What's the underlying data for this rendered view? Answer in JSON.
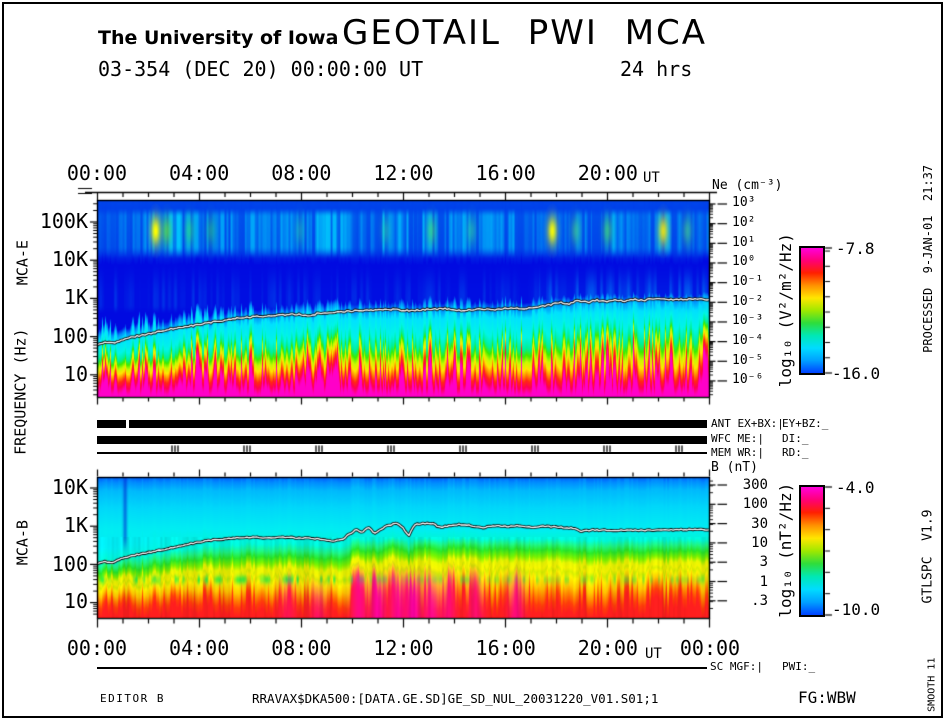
{
  "header": {
    "org": "The University of Iowa",
    "title": "GEOTAIL PWI MCA",
    "date_line": "03-354 (DEC 20) 00:00:00 UT",
    "duration": "24 hrs"
  },
  "top_axis": {
    "ticks": [
      "00:00",
      "04:00",
      "08:00",
      "12:00",
      "16:00",
      "20:00"
    ],
    "suffix": "UT"
  },
  "bottom_axis": {
    "ticks": [
      "00:00",
      "04:00",
      "08:00",
      "12:00",
      "16:00",
      "20:00"
    ],
    "suffix": "UT",
    "end_tick": "00:00"
  },
  "left_axis": {
    "label": "FREQUENCY (Hz)",
    "panel_e": "MCA-E",
    "panel_b": "MCA-B",
    "e_ticks": [
      "100K",
      "10K",
      "1K",
      "100",
      "10"
    ],
    "b_ticks": [
      "10K",
      "1K",
      "100",
      "10"
    ]
  },
  "right_axis_e": {
    "title": "Ne (cm⁻³)",
    "ticks": [
      "10³",
      "10²",
      "10¹",
      "10⁰",
      "10⁻¹",
      "10⁻²",
      "10⁻³",
      "10⁻⁴",
      "10⁻⁵",
      "10⁻⁶"
    ]
  },
  "right_axis_b": {
    "title": "B (nT)",
    "ticks": [
      "300",
      "100",
      "30",
      "10",
      "3",
      "1",
      ".3"
    ]
  },
  "colorbar_e": {
    "label": "log₁₀ (V²/m²/Hz)",
    "max_label": "-7.8",
    "min_label": "-16.0"
  },
  "colorbar_b": {
    "label": "log₁₀ (nT²/Hz)",
    "max_label": "-4.0",
    "min_label": "-10.0"
  },
  "colorbar_gradient": [
    "#ff00dd",
    "#ff0077",
    "#ff2000",
    "#ff9100",
    "#ffe600",
    "#9fe800",
    "#2edd3c",
    "#00e8b4",
    "#00dcff",
    "#00a0ff",
    "#0041ff"
  ],
  "status": {
    "row1_left": "ANT EX+BX:|",
    "row1_right": "EY+BZ:_",
    "row2_left": "WFC ME:|",
    "row2_right": "DI:_",
    "row3_left": "MEM WR:|",
    "row3_right": "RD:_",
    "sc_left": "SC MGF:|",
    "sc_right": "PWI:_"
  },
  "footer": {
    "editor": "EDITOR B",
    "file": "RRAVAX$DKA500:[DATA.GE.SD]GE_SD_NUL_20031220_V01.S01;1",
    "fg": "FG:WBW"
  },
  "side": {
    "processed": "PROCESSED  9-JAN-01  21:37",
    "program": "GTLSPC  V1.9",
    "smooth": "SMOOTH 11"
  },
  "chart_data": [
    {
      "id": "mca-e",
      "type": "heatmap",
      "instrument": "MCA-E",
      "x_label": "UT",
      "x_hours": [
        0,
        24
      ],
      "x_tick_labels": [
        "00:00",
        "04:00",
        "08:00",
        "12:00",
        "16:00",
        "20:00"
      ],
      "y_axis": {
        "label": "FREQUENCY (Hz)",
        "scale": "log",
        "tick_labels": [
          "100K",
          "10K",
          "1K",
          "100",
          "10"
        ]
      },
      "z_axis": {
        "label": "log10 (V²/m²/Hz)",
        "max": -7.8,
        "min": -16.0
      },
      "right_axis": {
        "label": "Ne (cm⁻³)",
        "tick_labels": [
          "10³",
          "10²",
          "10¹",
          "10⁰",
          "10⁻¹",
          "10⁻²",
          "10⁻³",
          "10⁻⁴",
          "10⁻⁵",
          "10⁻⁶"
        ]
      },
      "background_profile": [
        [
          0.0,
          "#0046eb"
        ],
        [
          0.28,
          "#0028e6"
        ],
        [
          0.33,
          "#000ae1"
        ],
        [
          0.52,
          "#000ae1"
        ],
        [
          0.555,
          "#008cfa"
        ],
        [
          0.6,
          "#00e1ff"
        ],
        [
          0.7,
          "#00f5e6"
        ],
        [
          0.76,
          "#00f096"
        ],
        [
          0.795,
          "#3ceb00"
        ],
        [
          0.83,
          "#c8fa00"
        ],
        [
          0.865,
          "#ffe600"
        ],
        [
          0.895,
          "#ff8c00"
        ],
        [
          0.925,
          "#ff2814"
        ],
        [
          0.955,
          "#ff0050"
        ],
        [
          0.985,
          "#ff00b4"
        ],
        [
          1.0,
          "#ff00c8"
        ]
      ],
      "emission_blobs": [
        [
          0.095,
          1.0,
          "#ffff00"
        ],
        [
          0.113,
          0.55,
          "#80ff00"
        ],
        [
          0.15,
          0.4,
          "#40ff40"
        ],
        [
          0.185,
          0.35,
          "#40ff40"
        ],
        [
          0.33,
          0.3,
          "#40ff80"
        ],
        [
          0.47,
          0.35,
          "#40ff80"
        ],
        [
          0.545,
          0.45,
          "#60ff40"
        ],
        [
          0.61,
          0.4,
          "#40ff80"
        ],
        [
          0.742,
          0.95,
          "#ffff00"
        ],
        [
          0.78,
          0.45,
          "#60ff60"
        ],
        [
          0.832,
          0.5,
          "#60ff40"
        ],
        [
          0.923,
          0.85,
          "#fff000"
        ],
        [
          0.962,
          0.45,
          "#60ff60"
        ]
      ],
      "overlay_line_points": [
        [
          0,
          0.735
        ],
        [
          0.015,
          0.72
        ],
        [
          0.03,
          0.725
        ],
        [
          0.05,
          0.7
        ],
        [
          0.07,
          0.688
        ],
        [
          0.09,
          0.675
        ],
        [
          0.11,
          0.66
        ],
        [
          0.14,
          0.645
        ],
        [
          0.17,
          0.63
        ],
        [
          0.2,
          0.615
        ],
        [
          0.23,
          0.6
        ],
        [
          0.26,
          0.592
        ],
        [
          0.3,
          0.585
        ],
        [
          0.33,
          0.578
        ],
        [
          0.345,
          0.592
        ],
        [
          0.36,
          0.575
        ],
        [
          0.39,
          0.568
        ],
        [
          0.42,
          0.562
        ],
        [
          0.45,
          0.558
        ],
        [
          0.48,
          0.555
        ],
        [
          0.51,
          0.562
        ],
        [
          0.54,
          0.555
        ],
        [
          0.57,
          0.552
        ],
        [
          0.6,
          0.562
        ],
        [
          0.62,
          0.552
        ],
        [
          0.645,
          0.558
        ],
        [
          0.67,
          0.548
        ],
        [
          0.7,
          0.552
        ],
        [
          0.72,
          0.545
        ],
        [
          0.74,
          0.532
        ],
        [
          0.755,
          0.52
        ],
        [
          0.77,
          0.527
        ],
        [
          0.785,
          0.51
        ],
        [
          0.8,
          0.52
        ],
        [
          0.815,
          0.507
        ],
        [
          0.83,
          0.518
        ],
        [
          0.845,
          0.505
        ],
        [
          0.86,
          0.512
        ],
        [
          0.875,
          0.503
        ],
        [
          0.89,
          0.51
        ],
        [
          0.905,
          0.502
        ],
        [
          0.93,
          0.506
        ],
        [
          0.96,
          0.504
        ],
        [
          1,
          0.504
        ]
      ]
    },
    {
      "id": "mca-b",
      "type": "heatmap",
      "instrument": "MCA-B",
      "x_label": "UT",
      "x_hours": [
        0,
        24
      ],
      "x_tick_labels": [
        "00:00",
        "04:00",
        "08:00",
        "12:00",
        "16:00",
        "20:00"
      ],
      "y_axis": {
        "label": "FREQUENCY (Hz)",
        "scale": "log",
        "tick_labels": [
          "10K",
          "1K",
          "100",
          "10"
        ]
      },
      "z_axis": {
        "label": "log10 (nT²/Hz)",
        "max": -4.0,
        "min": -10.0
      },
      "right_axis": {
        "label": "B (nT)",
        "tick_labels": [
          "300",
          "100",
          "30",
          "10",
          "3",
          "1",
          ".3"
        ]
      },
      "background_profile": [
        [
          0.0,
          "#005afa"
        ],
        [
          0.04,
          "#008cff"
        ],
        [
          0.1,
          "#00b9fc"
        ],
        [
          0.22,
          "#00d7fa"
        ],
        [
          0.38,
          "#00eef2"
        ],
        [
          0.47,
          "#00f5d7"
        ],
        [
          0.52,
          "#1ef082"
        ],
        [
          0.565,
          "#28e128"
        ],
        [
          0.615,
          "#78eb00"
        ],
        [
          0.66,
          "#e1f000"
        ],
        [
          0.7,
          "#eeee00"
        ],
        [
          0.73,
          "#d2e800"
        ],
        [
          0.77,
          "#faeb00"
        ],
        [
          0.83,
          "#ffc300"
        ],
        [
          0.89,
          "#ff7800"
        ],
        [
          0.94,
          "#ff3c0a"
        ],
        [
          1.0,
          "#ff1e1e"
        ]
      ],
      "magenta_blobs": [
        [
          0.31,
          0.35
        ],
        [
          0.36,
          0.45
        ],
        [
          0.427,
          0.7
        ],
        [
          0.457,
          0.9
        ],
        [
          0.49,
          0.8
        ],
        [
          0.515,
          0.95
        ],
        [
          0.545,
          0.75
        ],
        [
          0.572,
          0.6
        ],
        [
          0.617,
          0.55
        ],
        [
          0.683,
          0.65
        ]
      ],
      "overlay_line_points": [
        [
          0,
          0.615
        ],
        [
          0.012,
          0.598
        ],
        [
          0.025,
          0.608
        ],
        [
          0.04,
          0.578
        ],
        [
          0.06,
          0.555
        ],
        [
          0.08,
          0.538
        ],
        [
          0.1,
          0.52
        ],
        [
          0.125,
          0.5
        ],
        [
          0.15,
          0.475
        ],
        [
          0.165,
          0.463
        ],
        [
          0.18,
          0.452
        ],
        [
          0.2,
          0.443
        ],
        [
          0.225,
          0.433
        ],
        [
          0.25,
          0.428
        ],
        [
          0.28,
          0.432
        ],
        [
          0.31,
          0.428
        ],
        [
          0.34,
          0.433
        ],
        [
          0.365,
          0.44
        ],
        [
          0.385,
          0.452
        ],
        [
          0.4,
          0.443
        ],
        [
          0.413,
          0.4
        ],
        [
          0.423,
          0.373
        ],
        [
          0.432,
          0.392
        ],
        [
          0.443,
          0.355
        ],
        [
          0.453,
          0.4
        ],
        [
          0.463,
          0.372
        ],
        [
          0.473,
          0.345
        ],
        [
          0.488,
          0.33
        ],
        [
          0.498,
          0.35
        ],
        [
          0.508,
          0.42
        ],
        [
          0.518,
          0.337
        ],
        [
          0.53,
          0.33
        ],
        [
          0.548,
          0.33
        ],
        [
          0.56,
          0.36
        ],
        [
          0.574,
          0.345
        ],
        [
          0.59,
          0.335
        ],
        [
          0.61,
          0.345
        ],
        [
          0.63,
          0.36
        ],
        [
          0.65,
          0.345
        ],
        [
          0.67,
          0.35
        ],
        [
          0.69,
          0.345
        ],
        [
          0.71,
          0.36
        ],
        [
          0.73,
          0.35
        ],
        [
          0.755,
          0.357
        ],
        [
          0.775,
          0.362
        ],
        [
          0.79,
          0.385
        ],
        [
          0.81,
          0.375
        ],
        [
          0.835,
          0.38
        ],
        [
          0.86,
          0.375
        ],
        [
          0.89,
          0.378
        ],
        [
          0.92,
          0.378
        ],
        [
          0.95,
          0.373
        ],
        [
          1,
          0.373
        ]
      ]
    }
  ]
}
